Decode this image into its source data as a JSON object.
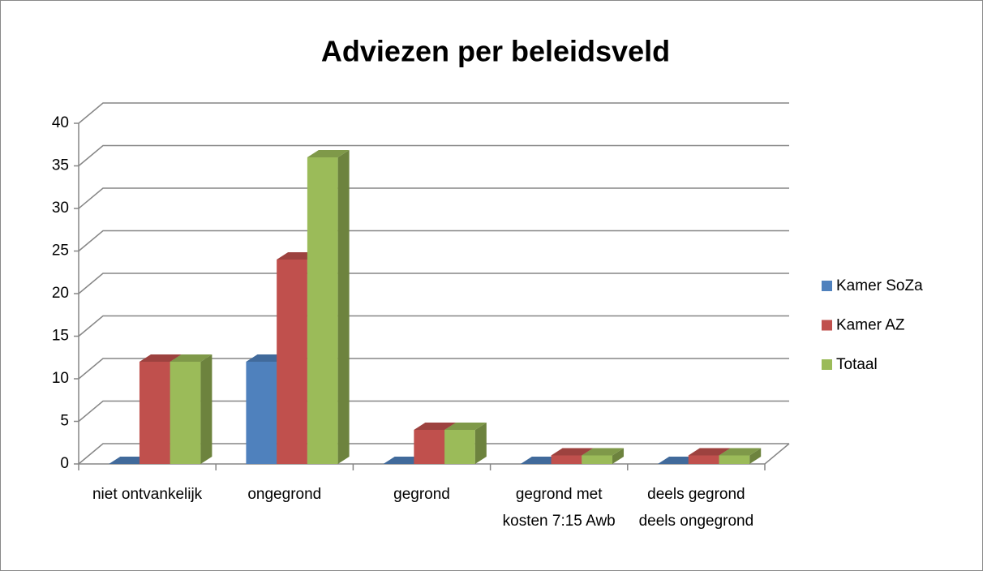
{
  "chart_data": {
    "type": "bar3d",
    "title": "Adviezen per beleidsveld",
    "categories": [
      "niet ontvankelijk",
      "ongegrond",
      "gegrond",
      "gegrond met kosten 7:15 Awb",
      "deels gegrond deels ongegrond"
    ],
    "series": [
      {
        "name": "Kamer SoZa",
        "color": "#4f81bd",
        "values": [
          0,
          12,
          0,
          0,
          0
        ]
      },
      {
        "name": "Kamer AZ",
        "color": "#c0504d",
        "values": [
          12,
          24,
          4,
          1,
          1
        ]
      },
      {
        "name": "Totaal",
        "color": "#9bbb59",
        "values": [
          12,
          36,
          4,
          1,
          1
        ]
      }
    ],
    "ylim": [
      0,
      40
    ],
    "yticks": [
      0,
      5,
      10,
      15,
      20,
      25,
      30,
      35,
      40
    ],
    "grid": true,
    "legend": "right"
  }
}
